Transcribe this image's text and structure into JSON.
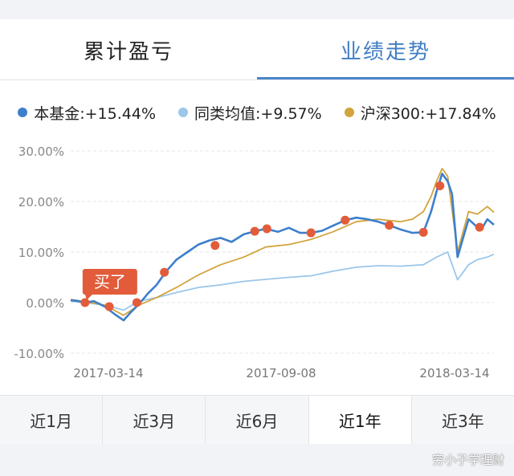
{
  "tabs": [
    {
      "label": "累计盈亏",
      "active": false
    },
    {
      "label": "业绩走势",
      "active": true
    }
  ],
  "legend": [
    {
      "label": "本基金:+15.44%",
      "color": "#3d7fcc"
    },
    {
      "label": "同类均值:+9.57%",
      "color": "#9cc7ea"
    },
    {
      "label": "沪深300:+17.84%",
      "color": "#d2a43c"
    }
  ],
  "periods": [
    {
      "label": "近1月",
      "active": false
    },
    {
      "label": "近3月",
      "active": false
    },
    {
      "label": "近6月",
      "active": false
    },
    {
      "label": "近1年",
      "active": true
    },
    {
      "label": "近3年",
      "active": false
    }
  ],
  "watermark": "穷小子学理财",
  "chart_data": {
    "type": "line",
    "title": "",
    "xlabel": "",
    "ylabel": "",
    "y_unit": "%",
    "ylim": [
      -10,
      30
    ],
    "yticks": [
      30,
      20,
      10,
      0,
      -10
    ],
    "ytick_labels": [
      "30.00%",
      "20.00%",
      "10.00%",
      "0.00%",
      "-10.00%"
    ],
    "xlim": [
      "2017-03-01",
      "2018-03-20"
    ],
    "xtick_labels": [
      "2017-03-14",
      "2017-09-08",
      "2018-03-14"
    ],
    "grid": "horizontal-dashed",
    "legend_position": "top",
    "annotation": {
      "text": "买了",
      "x": "2017-03-14",
      "y": 0,
      "color": "#e25c3b"
    },
    "buy_markers": {
      "color": "#e25c3b",
      "points": [
        {
          "x": "2017-03-14",
          "y": 0.0
        },
        {
          "x": "2017-04-05",
          "y": -0.8
        },
        {
          "x": "2017-04-30",
          "y": 0.0
        },
        {
          "x": "2017-05-25",
          "y": 6.0
        },
        {
          "x": "2017-07-10",
          "y": 11.3
        },
        {
          "x": "2017-08-15",
          "y": 14.1
        },
        {
          "x": "2017-08-26",
          "y": 14.6
        },
        {
          "x": "2017-10-05",
          "y": 13.8
        },
        {
          "x": "2017-11-05",
          "y": 16.3
        },
        {
          "x": "2017-12-15",
          "y": 15.3
        },
        {
          "x": "2018-01-15",
          "y": 13.9
        },
        {
          "x": "2018-01-30",
          "y": 23.1
        },
        {
          "x": "2018-03-07",
          "y": 14.9
        }
      ]
    },
    "series": [
      {
        "name": "本基金",
        "color": "#3d7fcc",
        "x": [
          "2017-03-01",
          "2017-03-08",
          "2017-03-14",
          "2017-03-22",
          "2017-04-01",
          "2017-04-10",
          "2017-04-18",
          "2017-04-25",
          "2017-05-02",
          "2017-05-10",
          "2017-05-18",
          "2017-05-26",
          "2017-06-05",
          "2017-06-15",
          "2017-06-25",
          "2017-07-05",
          "2017-07-15",
          "2017-07-25",
          "2017-08-05",
          "2017-08-15",
          "2017-08-25",
          "2017-09-05",
          "2017-09-15",
          "2017-09-25",
          "2017-10-05",
          "2017-10-15",
          "2017-10-25",
          "2017-11-05",
          "2017-11-15",
          "2017-11-25",
          "2017-12-05",
          "2017-12-15",
          "2017-12-25",
          "2018-01-05",
          "2018-01-15",
          "2018-01-22",
          "2018-01-27",
          "2018-02-01",
          "2018-02-06",
          "2018-02-10",
          "2018-02-15",
          "2018-02-25",
          "2018-03-05",
          "2018-03-10",
          "2018-03-14",
          "2018-03-20"
        ],
        "y": [
          0.5,
          0.3,
          0.0,
          0.3,
          -0.8,
          -2.3,
          -3.5,
          -1.8,
          -0.3,
          1.8,
          3.5,
          6.0,
          8.5,
          10.0,
          11.5,
          12.3,
          12.8,
          12.0,
          13.5,
          14.1,
          14.6,
          14.0,
          14.8,
          13.8,
          13.8,
          14.2,
          15.2,
          16.3,
          16.8,
          16.5,
          16.0,
          15.3,
          14.5,
          13.8,
          13.9,
          18.0,
          22.0,
          25.5,
          24.0,
          21.5,
          9.0,
          16.5,
          14.9,
          15.0,
          16.5,
          15.4
        ]
      },
      {
        "name": "同类均值",
        "color": "#9cc7ea",
        "x": [
          "2017-03-01",
          "2017-03-14",
          "2017-04-01",
          "2017-04-18",
          "2017-05-02",
          "2017-05-18",
          "2017-06-05",
          "2017-06-25",
          "2017-07-15",
          "2017-08-05",
          "2017-08-25",
          "2017-09-15",
          "2017-10-05",
          "2017-10-25",
          "2017-11-15",
          "2017-12-05",
          "2017-12-25",
          "2018-01-15",
          "2018-01-27",
          "2018-02-06",
          "2018-02-15",
          "2018-02-25",
          "2018-03-05",
          "2018-03-14",
          "2018-03-20"
        ],
        "y": [
          0.3,
          0.0,
          -0.5,
          -1.5,
          0.3,
          1.0,
          2.0,
          3.0,
          3.5,
          4.2,
          4.6,
          5.0,
          5.3,
          6.2,
          7.0,
          7.3,
          7.2,
          7.5,
          9.0,
          10.0,
          4.5,
          7.5,
          8.5,
          9.0,
          9.57
        ]
      },
      {
        "name": "沪深300",
        "color": "#d2a43c",
        "x": [
          "2017-03-01",
          "2017-03-14",
          "2017-04-01",
          "2017-04-18",
          "2017-05-02",
          "2017-05-18",
          "2017-06-05",
          "2017-06-25",
          "2017-07-15",
          "2017-08-05",
          "2017-08-25",
          "2017-09-15",
          "2017-10-05",
          "2017-10-25",
          "2017-11-15",
          "2017-12-05",
          "2017-12-25",
          "2018-01-05",
          "2018-01-15",
          "2018-01-22",
          "2018-01-27",
          "2018-02-01",
          "2018-02-06",
          "2018-02-15",
          "2018-02-25",
          "2018-03-05",
          "2018-03-14",
          "2018-03-20"
        ],
        "y": [
          0.6,
          0.2,
          -0.5,
          -2.5,
          -0.5,
          1.0,
          3.0,
          5.5,
          7.5,
          9.0,
          11.0,
          11.5,
          12.5,
          14.0,
          16.0,
          16.5,
          16.0,
          16.5,
          18.0,
          21.0,
          24.0,
          26.5,
          25.0,
          10.0,
          18.0,
          17.5,
          19.0,
          17.84
        ]
      }
    ]
  }
}
